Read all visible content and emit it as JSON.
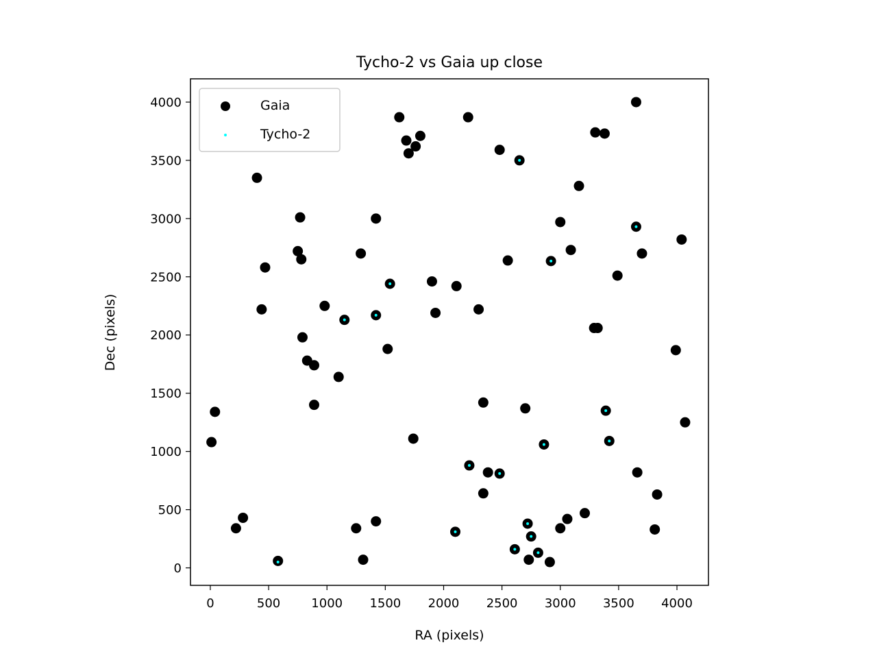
{
  "chart_data": {
    "type": "scatter",
    "title": "Tycho-2 vs Gaia up close",
    "xlabel": "RA (pixels)",
    "ylabel": "Dec (pixels)",
    "xlim": [
      -170,
      4270
    ],
    "ylim": [
      -150,
      4200
    ],
    "xticks": [
      0,
      500,
      1000,
      1500,
      2000,
      2500,
      3000,
      3500,
      4000
    ],
    "yticks": [
      0,
      500,
      1000,
      1500,
      2000,
      2500,
      3000,
      3500,
      4000
    ],
    "grid": false,
    "legend": {
      "placement": "top-left",
      "entries": [
        "Gaia",
        "Tycho-2"
      ]
    },
    "series": [
      {
        "name": "Gaia",
        "color": "#000000",
        "marker": "large-dot",
        "x": [
          1620,
          2210,
          3650,
          1680,
          1800,
          1760,
          1700,
          2480,
          2650,
          3300,
          3380,
          400,
          3160,
          770,
          1420,
          3000,
          3650,
          4040,
          750,
          780,
          1290,
          3700,
          2550,
          2920,
          3090,
          470,
          3490,
          1540,
          1900,
          2110,
          440,
          980,
          1150,
          1420,
          1930,
          2300,
          3290,
          3320,
          790,
          1520,
          3990,
          830,
          890,
          1100,
          890,
          2340,
          2700,
          3390,
          4070,
          10,
          40,
          1740,
          3420,
          2860,
          2220,
          2380,
          2480,
          3660,
          2340,
          3830,
          280,
          3210,
          2720,
          3060,
          220,
          1420,
          1250,
          3000,
          3810,
          2100,
          2750,
          2610,
          2810,
          580,
          1310,
          2730,
          2910
        ],
        "y": [
          3870,
          3870,
          4000,
          3670,
          3710,
          3620,
          3560,
          3590,
          3500,
          3740,
          3730,
          3350,
          3280,
          3010,
          3000,
          2970,
          2930,
          2820,
          2720,
          2650,
          2700,
          2700,
          2640,
          2635,
          2730,
          2580,
          2510,
          2440,
          2460,
          2420,
          2220,
          2250,
          2130,
          2170,
          2190,
          2220,
          2060,
          2060,
          1980,
          1880,
          1870,
          1780,
          1740,
          1640,
          1400,
          1420,
          1370,
          1350,
          1250,
          1080,
          1340,
          1110,
          1090,
          1060,
          880,
          820,
          810,
          820,
          640,
          630,
          430,
          470,
          380,
          420,
          340,
          400,
          340,
          340,
          330,
          310,
          270,
          160,
          130,
          60,
          70,
          70,
          50
        ]
      },
      {
        "name": "Tycho-2",
        "color": "#00ffff",
        "marker": "small-dot",
        "x": [
          2650,
          3650,
          2920,
          1540,
          1150,
          1420,
          3390,
          2860,
          3420,
          2220,
          2480,
          2720,
          2750,
          2100,
          2610,
          2810,
          580
        ],
        "y": [
          3500,
          2930,
          2635,
          2440,
          2130,
          2170,
          1350,
          1060,
          1090,
          880,
          810,
          380,
          270,
          310,
          160,
          130,
          50
        ]
      }
    ]
  }
}
